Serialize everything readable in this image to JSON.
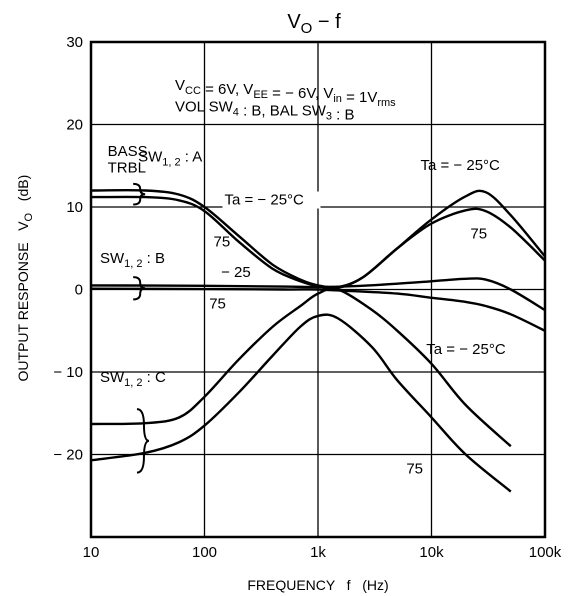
{
  "chart_data": {
    "type": "line",
    "title": {
      "main": "V",
      "sub": "O",
      "rest": " − f"
    },
    "xlabel": "FREQUENCY   f   (Hz)",
    "ylabel": {
      "main": "OUTPUT RESPONSE   V",
      "sub": "O",
      "rest": "   (dB)"
    },
    "x_scale": "log",
    "xlim": [
      10,
      100000
    ],
    "ylim": [
      -30,
      30
    ],
    "grid": true,
    "x_ticks": [
      {
        "v": 10,
        "label": "10"
      },
      {
        "v": 100,
        "label": "100"
      },
      {
        "v": 1000,
        "label": "1k"
      },
      {
        "v": 10000,
        "label": "10k"
      },
      {
        "v": 100000,
        "label": "100k"
      }
    ],
    "y_ticks": [
      {
        "v": 30,
        "label": "30"
      },
      {
        "v": 20,
        "label": "20"
      },
      {
        "v": 10,
        "label": "10"
      },
      {
        "v": 0,
        "label": "0"
      },
      {
        "v": -10,
        "label": "− 10"
      },
      {
        "v": -20,
        "label": "− 20"
      }
    ],
    "conditions": [
      [
        {
          "t": "V"
        },
        {
          "t": "CC",
          "sub": true
        },
        {
          "t": " = 6V, V"
        },
        {
          "t": "EE",
          "sub": true
        },
        {
          "t": " = − 6V, V"
        },
        {
          "t": "in",
          "sub": true
        },
        {
          "t": " = 1V"
        },
        {
          "t": "rms",
          "sub": true
        }
      ],
      [
        {
          "t": "VOL SW"
        },
        {
          "t": "4",
          "sub": true
        },
        {
          "t": " : B, BAL SW"
        },
        {
          "t": "3",
          "sub": true
        },
        {
          "t": " : B"
        }
      ]
    ],
    "series": [
      {
        "group": "SW1,2:A",
        "temp": "Ta = −25°C",
        "points": [
          [
            10,
            12
          ],
          [
            30,
            12
          ],
          [
            60,
            11.5
          ],
          [
            100,
            10
          ],
          [
            200,
            6.5
          ],
          [
            400,
            3
          ],
          [
            700,
            1.2
          ],
          [
            1000,
            0.5
          ],
          [
            1500,
            0.3
          ],
          [
            2500,
            1.5
          ],
          [
            5000,
            5
          ],
          [
            10000,
            8.5
          ],
          [
            20000,
            11.3
          ],
          [
            30000,
            11.8
          ],
          [
            50000,
            9
          ],
          [
            100000,
            4
          ]
        ]
      },
      {
        "group": "SW1,2:A",
        "temp": "75",
        "points": [
          [
            10,
            11.2
          ],
          [
            30,
            11.2
          ],
          [
            60,
            10.8
          ],
          [
            100,
            9.5
          ],
          [
            200,
            5.8
          ],
          [
            400,
            2.5
          ],
          [
            700,
            1
          ],
          [
            1000,
            0.4
          ],
          [
            1500,
            0.2
          ],
          [
            2500,
            1.5
          ],
          [
            5000,
            5
          ],
          [
            10000,
            8
          ],
          [
            20000,
            9.6
          ],
          [
            30000,
            9.5
          ],
          [
            50000,
            7.5
          ],
          [
            100000,
            3.5
          ]
        ]
      },
      {
        "group": "SW1,2:B",
        "temp": "−25",
        "points": [
          [
            10,
            0.5
          ],
          [
            100,
            0.45
          ],
          [
            500,
            0.35
          ],
          [
            1000,
            0.3
          ],
          [
            2000,
            0.4
          ],
          [
            5000,
            0.7
          ],
          [
            10000,
            1
          ],
          [
            20000,
            1.3
          ],
          [
            30000,
            1.2
          ],
          [
            50000,
            0
          ],
          [
            100000,
            -2.5
          ]
        ]
      },
      {
        "group": "SW1,2:B",
        "temp": "75",
        "points": [
          [
            10,
            0.1
          ],
          [
            100,
            0.05
          ],
          [
            500,
            0
          ],
          [
            1000,
            0
          ],
          [
            2000,
            -0.2
          ],
          [
            5000,
            -0.5
          ],
          [
            10000,
            -1
          ],
          [
            20000,
            -1.5
          ],
          [
            30000,
            -2
          ],
          [
            50000,
            -3
          ],
          [
            100000,
            -5
          ]
        ]
      },
      {
        "group": "SW1,2:C",
        "temp": "Ta = −25°C",
        "points": [
          [
            10,
            -16.3
          ],
          [
            30,
            -16.2
          ],
          [
            60,
            -15.5
          ],
          [
            100,
            -13
          ],
          [
            200,
            -8.5
          ],
          [
            400,
            -4.5
          ],
          [
            700,
            -2
          ],
          [
            1000,
            -0.5
          ],
          [
            1500,
            0
          ],
          [
            3000,
            -2.5
          ],
          [
            5000,
            -5
          ],
          [
            10000,
            -9
          ],
          [
            20000,
            -14
          ],
          [
            50000,
            -19
          ]
        ]
      },
      {
        "group": "SW1,2:C",
        "temp": "75",
        "points": [
          [
            10,
            -20.7
          ],
          [
            30,
            -19.8
          ],
          [
            60,
            -18.5
          ],
          [
            100,
            -16.5
          ],
          [
            200,
            -12.5
          ],
          [
            400,
            -8
          ],
          [
            700,
            -4.5
          ],
          [
            1000,
            -3.2
          ],
          [
            1500,
            -3.5
          ],
          [
            3000,
            -7
          ],
          [
            5000,
            -11
          ],
          [
            10000,
            -15.5
          ],
          [
            20000,
            -20
          ],
          [
            50000,
            -24.5
          ]
        ]
      }
    ],
    "annotations": [
      {
        "id": "bass",
        "text": "BASS",
        "x": 14,
        "y": 16.2
      },
      {
        "id": "trbl",
        "text": "TRBL",
        "x": 14,
        "y": 14.2
      },
      {
        "id": "sw-a",
        "sw": "SW",
        "sub": "1, 2",
        "rest": " : A",
        "x": 26,
        "y": 15.5
      },
      {
        "id": "ta-a",
        "text": "Ta = − 25°C",
        "x": 150,
        "y": 10.3
      },
      {
        "id": "n75-a",
        "text": "75",
        "x": 120,
        "y": 5.2
      },
      {
        "id": "ta-right",
        "text": "Ta = − 25°C",
        "x": 8000,
        "y": 14.5
      },
      {
        "id": "n75-right",
        "text": "75",
        "x": 22000,
        "y": 6.2
      },
      {
        "id": "sw-b",
        "sw": "SW",
        "sub": "1, 2",
        "rest": " : B",
        "x": 12,
        "y": 3.2
      },
      {
        "id": "n25-b",
        "text": "− 25",
        "x": 140,
        "y": 1.5
      },
      {
        "id": "n75-b",
        "text": "75",
        "x": 110,
        "y": -2.3
      },
      {
        "id": "ta-c",
        "text": "Ta = − 25°C",
        "x": 9000,
        "y": -7.8
      },
      {
        "id": "sw-c",
        "sw": "SW",
        "sub": "1, 2",
        "rest": " : C",
        "x": 12,
        "y": -11.2
      },
      {
        "id": "n75-c",
        "text": "75",
        "x": 6000,
        "y": -22.3
      }
    ]
  }
}
